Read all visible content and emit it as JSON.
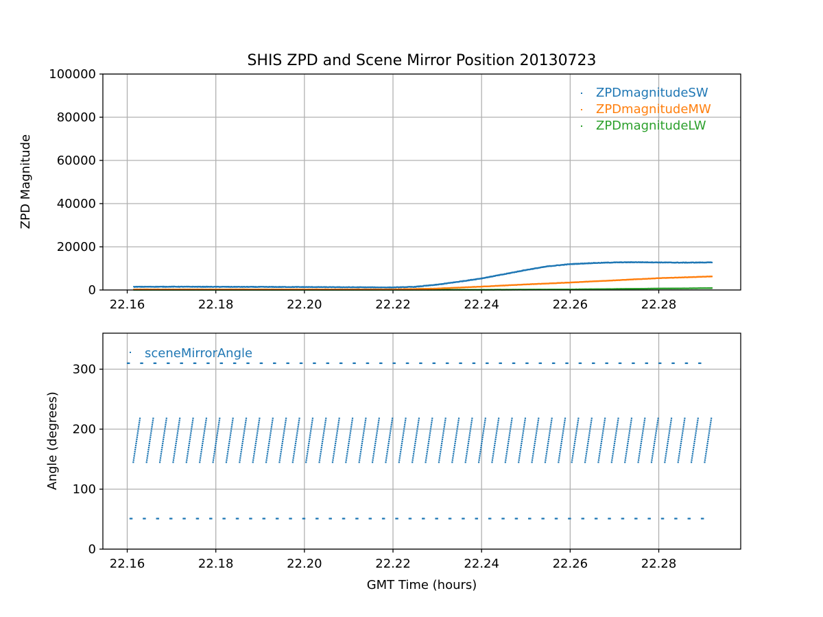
{
  "chart_data": [
    {
      "type": "scatter",
      "title": "SHIS ZPD and Scene Mirror Position 20130723",
      "xlabel": "",
      "ylabel": "ZPD Magnitude",
      "xlim": [
        22.1545,
        22.2985
      ],
      "ylim": [
        0,
        100000
      ],
      "xticks": [
        22.16,
        22.18,
        22.2,
        22.22,
        22.24,
        22.26,
        22.28
      ],
      "xtick_labels": [
        "22.16",
        "22.18",
        "22.20",
        "22.22",
        "22.24",
        "22.26",
        "22.28"
      ],
      "yticks": [
        0,
        20000,
        40000,
        60000,
        80000,
        100000
      ],
      "ytick_labels": [
        "0",
        "20000",
        "40000",
        "60000",
        "80000",
        "100000"
      ],
      "grid": true,
      "legend_position": "top-right",
      "series": [
        {
          "name": "ZPDmagnitudeSW",
          "color": "#1f77b4",
          "x": [
            22.1615,
            22.17,
            22.18,
            22.19,
            22.2,
            22.21,
            22.22,
            22.225,
            22.23,
            22.235,
            22.24,
            22.245,
            22.25,
            22.255,
            22.26,
            22.265,
            22.27,
            22.275,
            22.28,
            22.285,
            22.292
          ],
          "y": [
            1500,
            1550,
            1500,
            1450,
            1400,
            1300,
            1200,
            1500,
            2500,
            3900,
            5400,
            7300,
            9300,
            11000,
            12000,
            12500,
            12800,
            12900,
            12800,
            12700,
            12800
          ]
        },
        {
          "name": "ZPDmagnitudeMW",
          "color": "#ff7f0e",
          "x": [
            22.1615,
            22.18,
            22.2,
            22.22,
            22.23,
            22.24,
            22.25,
            22.26,
            22.27,
            22.28,
            22.292
          ],
          "y": [
            300,
            300,
            300,
            300,
            700,
            1600,
            2600,
            3500,
            4500,
            5500,
            6300
          ]
        },
        {
          "name": "ZPDmagnitudeLW",
          "color": "#2ca02c",
          "x": [
            22.1615,
            22.2,
            22.24,
            22.26,
            22.27,
            22.28,
            22.292
          ],
          "y": [
            100,
            100,
            150,
            300,
            500,
            700,
            900
          ]
        }
      ]
    },
    {
      "type": "scatter",
      "title": "",
      "xlabel": "GMT Time (hours)",
      "ylabel": "Angle (degrees)",
      "xlim": [
        22.1545,
        22.2985
      ],
      "ylim": [
        0,
        360
      ],
      "xticks": [
        22.16,
        22.18,
        22.2,
        22.22,
        22.24,
        22.26,
        22.28
      ],
      "xtick_labels": [
        "22.16",
        "22.18",
        "22.20",
        "22.22",
        "22.24",
        "22.26",
        "22.28"
      ],
      "yticks": [
        0,
        100,
        200,
        300
      ],
      "ytick_labels": [
        "0",
        "100",
        "200",
        "300"
      ],
      "grid": true,
      "legend_position": "top-left",
      "series": [
        {
          "name": "sceneMirrorAngle",
          "color": "#1f77b4",
          "pattern": "periodic sawtooth: scan 145-218 degrees, with calibration dwells at 310 and 51 degrees",
          "x_start": 22.16,
          "x_end": 22.292,
          "cycle_count": 44,
          "scan_range": [
            145,
            218
          ],
          "hot_bb_angle": 310,
          "cold_bb_angle": 51
        }
      ]
    }
  ]
}
